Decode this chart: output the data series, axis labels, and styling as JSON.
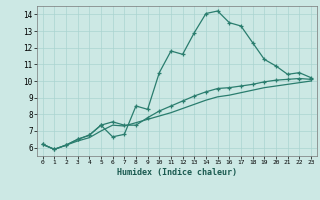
{
  "xlabel": "Humidex (Indice chaleur)",
  "bg_color": "#cce8e4",
  "line_color": "#2a7d6e",
  "grid_color": "#aad4d0",
  "xlim": [
    -0.5,
    23.5
  ],
  "ylim": [
    5.5,
    14.5
  ],
  "xticks": [
    0,
    1,
    2,
    3,
    4,
    5,
    6,
    7,
    8,
    9,
    10,
    11,
    12,
    13,
    14,
    15,
    16,
    17,
    18,
    19,
    20,
    21,
    22,
    23
  ],
  "yticks": [
    6,
    7,
    8,
    9,
    10,
    11,
    12,
    13,
    14
  ],
  "line1_x": [
    0,
    1,
    2,
    3,
    4,
    5,
    6,
    7,
    8,
    9,
    10,
    11,
    12,
    13,
    14,
    15,
    16,
    17,
    18,
    19,
    20,
    21,
    22,
    23
  ],
  "line1_y": [
    6.2,
    5.9,
    6.15,
    6.5,
    6.75,
    7.35,
    6.65,
    6.8,
    8.5,
    8.3,
    10.5,
    11.8,
    11.6,
    12.9,
    14.05,
    14.2,
    13.5,
    13.3,
    12.3,
    11.3,
    10.9,
    10.4,
    10.5,
    10.2
  ],
  "line2_x": [
    0,
    1,
    2,
    3,
    4,
    5,
    6,
    7,
    8,
    9,
    10,
    11,
    12,
    13,
    14,
    15,
    16,
    17,
    18,
    19,
    20,
    21,
    22,
    23
  ],
  "line2_y": [
    6.2,
    5.9,
    6.15,
    6.5,
    6.75,
    7.35,
    7.55,
    7.35,
    7.35,
    7.8,
    8.2,
    8.5,
    8.8,
    9.1,
    9.35,
    9.55,
    9.6,
    9.7,
    9.8,
    9.95,
    10.05,
    10.1,
    10.15,
    10.1
  ],
  "line3_x": [
    0,
    1,
    2,
    3,
    4,
    5,
    6,
    7,
    8,
    9,
    10,
    11,
    12,
    13,
    14,
    15,
    16,
    17,
    18,
    19,
    20,
    21,
    22,
    23
  ],
  "line3_y": [
    6.2,
    5.9,
    6.15,
    6.4,
    6.6,
    7.0,
    7.35,
    7.3,
    7.5,
    7.7,
    7.9,
    8.1,
    8.35,
    8.6,
    8.85,
    9.05,
    9.15,
    9.3,
    9.45,
    9.6,
    9.7,
    9.8,
    9.9,
    10.0
  ]
}
